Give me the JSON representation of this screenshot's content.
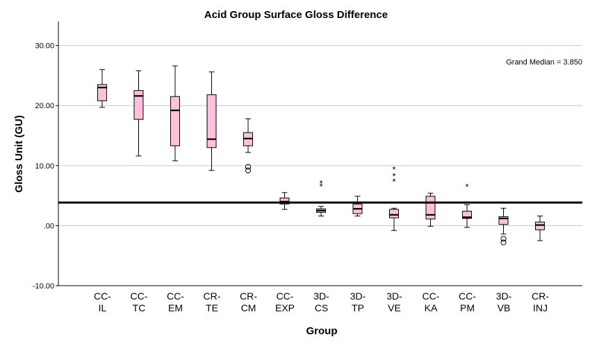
{
  "chart_data": {
    "type": "boxplot",
    "title": "Acid Group Surface Gloss Difference",
    "xlabel": "Group",
    "ylabel": "Gloss Unit (GU)",
    "ylim": [
      -10,
      34
    ],
    "yticks": [
      -10,
      0,
      10,
      20,
      30
    ],
    "ytick_labels": [
      "-10.00",
      ".00",
      "10.00",
      "20.00",
      "30.00"
    ],
    "grid": "horizontal",
    "reference_line": {
      "value": 3.85,
      "label": "Grand Median = 3.850"
    },
    "box_color": "#ffc0dc",
    "groups": [
      {
        "label": [
          "CC-",
          "IL"
        ],
        "name": "CC-IL",
        "whisker_low": 19.7,
        "q1": 20.8,
        "median": 23.0,
        "q3": 23.5,
        "whisker_high": 26.0,
        "outliers": [],
        "extremes": []
      },
      {
        "label": [
          "CC-",
          "TC"
        ],
        "name": "CC-TC",
        "whisker_low": 11.6,
        "q1": 17.7,
        "median": 21.6,
        "q3": 22.5,
        "whisker_high": 25.8,
        "outliers": [],
        "extremes": []
      },
      {
        "label": [
          "CC-",
          "EM"
        ],
        "name": "CC-EM",
        "whisker_low": 10.8,
        "q1": 13.3,
        "median": 19.2,
        "q3": 21.5,
        "whisker_high": 26.6,
        "outliers": [],
        "extremes": []
      },
      {
        "label": [
          "CR-",
          "TE"
        ],
        "name": "CR-TE",
        "whisker_low": 9.2,
        "q1": 13.0,
        "median": 14.4,
        "q3": 21.8,
        "whisker_high": 25.6,
        "outliers": [],
        "extremes": []
      },
      {
        "label": [
          "CR-",
          "CM"
        ],
        "name": "CR-CM",
        "whisker_low": 12.2,
        "q1": 13.3,
        "median": 14.5,
        "q3": 15.5,
        "whisker_high": 17.8,
        "outliers": [
          9.2,
          9.8
        ],
        "extremes": []
      },
      {
        "label": [
          "CC-",
          "EXP"
        ],
        "name": "CC-EXP",
        "whisker_low": 2.7,
        "q1": 3.6,
        "median": 4.0,
        "q3": 4.6,
        "whisker_high": 5.5,
        "outliers": [],
        "extremes": []
      },
      {
        "label": [
          "3D-",
          "CS"
        ],
        "name": "3D-CS",
        "whisker_low": 1.6,
        "q1": 2.2,
        "median": 2.5,
        "q3": 2.8,
        "whisker_high": 3.2,
        "outliers": [],
        "extremes": [
          6.6,
          7.1
        ]
      },
      {
        "label": [
          "3D-",
          "TP"
        ],
        "name": "3D-TP",
        "whisker_low": 1.6,
        "q1": 2.0,
        "median": 2.8,
        "q3": 3.6,
        "whisker_high": 4.9,
        "outliers": [],
        "extremes": []
      },
      {
        "label": [
          "3D-",
          "VE"
        ],
        "name": "3D-VE",
        "whisker_low": -0.8,
        "q1": 1.3,
        "median": 1.8,
        "q3": 2.7,
        "whisker_high": 2.9,
        "outliers": [],
        "extremes": [
          7.4,
          8.3,
          9.4
        ]
      },
      {
        "label": [
          "CC-",
          "KA"
        ],
        "name": "CC-KA",
        "whisker_low": -0.1,
        "q1": 1.1,
        "median": 1.8,
        "q3": 4.9,
        "whisker_high": 5.4,
        "outliers": [],
        "extremes": []
      },
      {
        "label": [
          "CC-",
          "PM"
        ],
        "name": "CC-PM",
        "whisker_low": -0.3,
        "q1": 1.2,
        "median": 1.4,
        "q3": 2.4,
        "whisker_high": 3.5,
        "outliers": [],
        "extremes": [
          6.5
        ]
      },
      {
        "label": [
          "3D-",
          "VB"
        ],
        "name": "3D-VB",
        "whisker_low": -1.4,
        "q1": 0.2,
        "median": 1.2,
        "q3": 1.5,
        "whisker_high": 2.9,
        "outliers": [
          -2.2,
          -2.8
        ],
        "extremes": []
      },
      {
        "label": [
          "CR-",
          "INJ"
        ],
        "name": "CR-INJ",
        "whisker_low": -2.5,
        "q1": -0.7,
        "median": 0.1,
        "q3": 0.6,
        "whisker_high": 1.6,
        "outliers": [],
        "extremes": []
      }
    ]
  }
}
